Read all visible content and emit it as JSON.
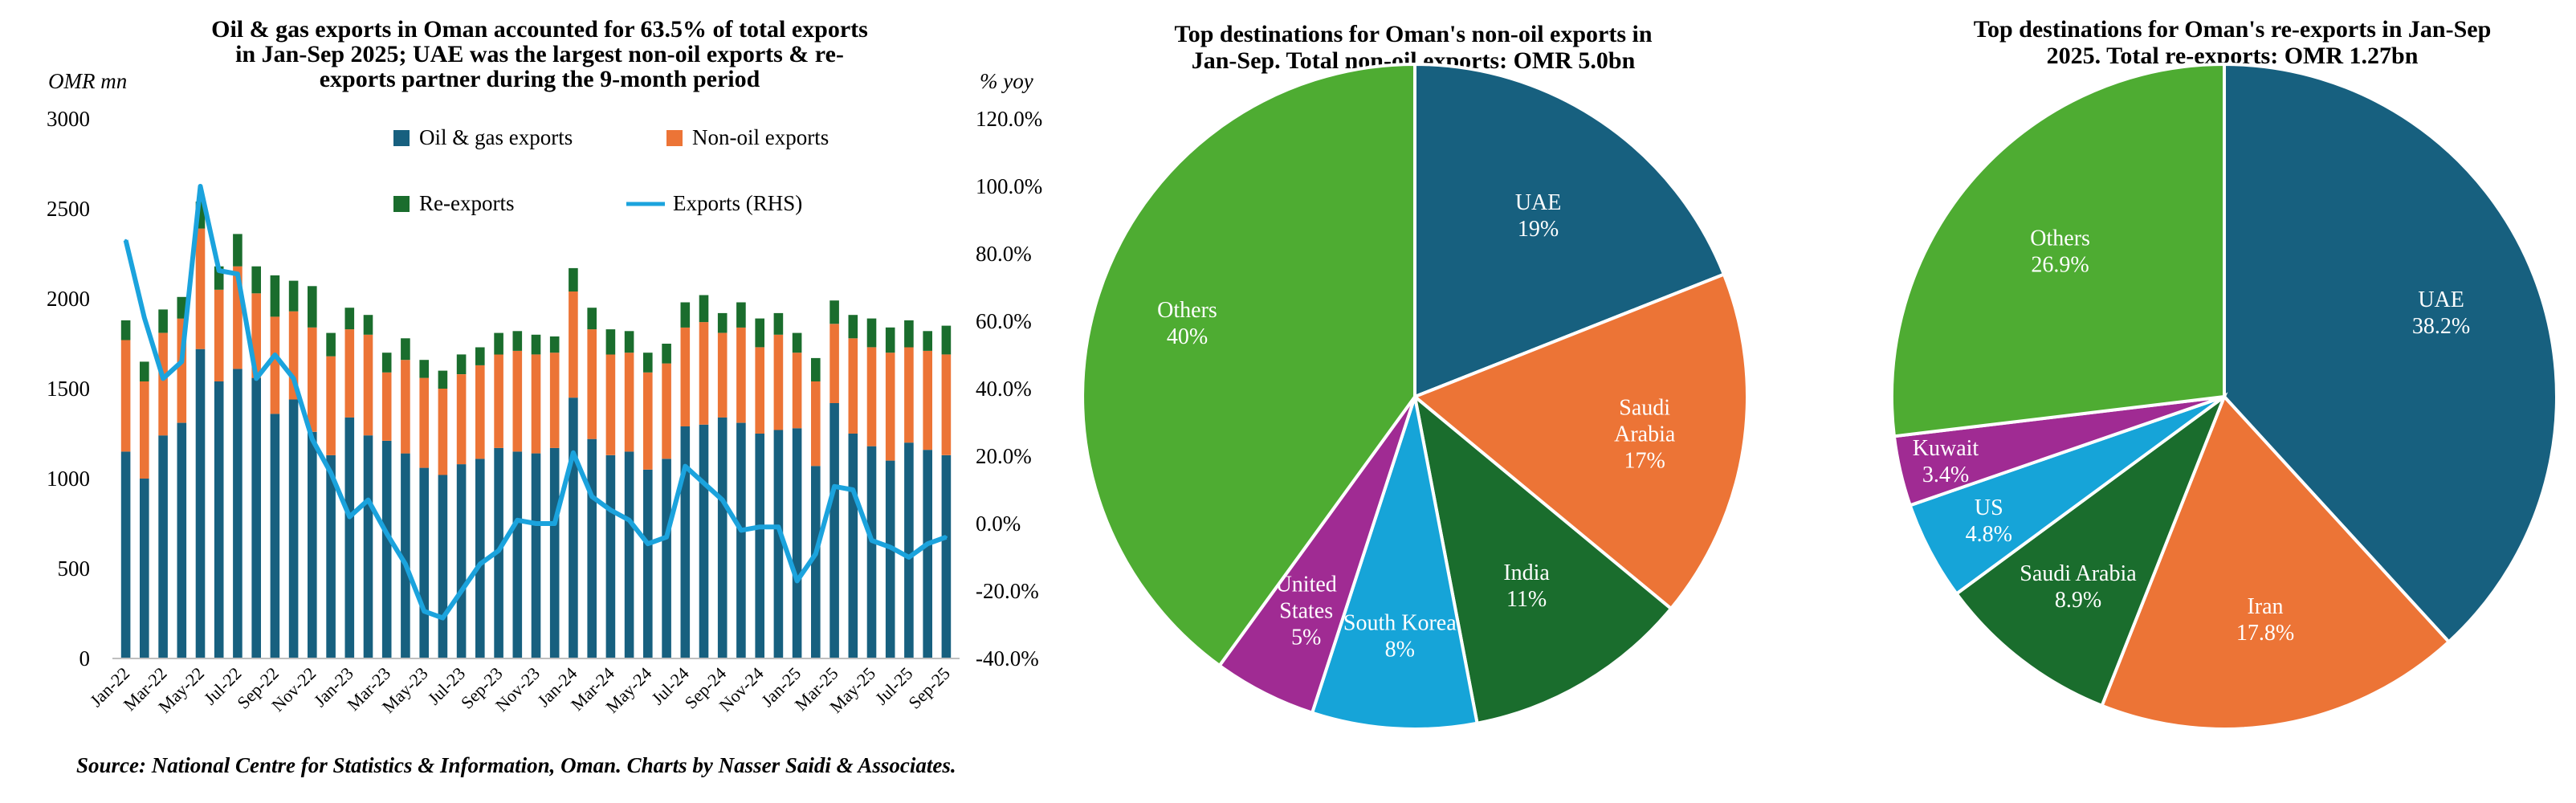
{
  "colors": {
    "oil": "#17607f",
    "nonoil": "#ec7436",
    "reexp": "#1a6d2d",
    "line": "#1ba3dd",
    "purple": "#a02b93",
    "green": "#4eac32",
    "lightblue": "#16a4d8"
  },
  "source": "Source: National Centre for Statistics & Information, Oman. Charts by Nasser Saidi & Associates.",
  "chart_data": [
    {
      "type": "bar",
      "stacked": true,
      "title_lines": [
        "Oil & gas exports in Oman accounted for 63.5% of total exports",
        "in Jan-Sep 2025; UAE was the largest non-oil exports & re-",
        "exports partner during the 9-month period"
      ],
      "ylabel": "OMR mn",
      "y2label": "% yoy",
      "ylim": [
        0,
        3000
      ],
      "y2lim": [
        -40,
        120
      ],
      "y_ticks": [
        "0",
        "500",
        "1000",
        "1500",
        "2000",
        "2500",
        "3000"
      ],
      "y2_ticks": [
        "-40.0%",
        "-20.0%",
        "0.0%",
        "20.0%",
        "40.0%",
        "60.0%",
        "80.0%",
        "100.0%",
        "120.0%"
      ],
      "x_tick_labels": [
        "Jan-22",
        "Mar-22",
        "May-22",
        "Jul-22",
        "Sep-22",
        "Nov-22",
        "Jan-23",
        "Mar-23",
        "May-23",
        "Jul-23",
        "Sep-23",
        "Nov-23",
        "Jan-24",
        "Mar-24",
        "May-24",
        "Jul-24",
        "Sep-24",
        "Nov-24",
        "Jan-25",
        "Mar-25",
        "May-25",
        "Jul-25",
        "Sep-25"
      ],
      "categories": [
        "Jan-22",
        "Feb-22",
        "Mar-22",
        "Apr-22",
        "May-22",
        "Jun-22",
        "Jul-22",
        "Aug-22",
        "Sep-22",
        "Oct-22",
        "Nov-22",
        "Dec-22",
        "Jan-23",
        "Feb-23",
        "Mar-23",
        "Apr-23",
        "May-23",
        "Jun-23",
        "Jul-23",
        "Aug-23",
        "Sep-23",
        "Oct-23",
        "Nov-23",
        "Dec-23",
        "Jan-24",
        "Feb-24",
        "Mar-24",
        "Apr-24",
        "May-24",
        "Jun-24",
        "Jul-24",
        "Aug-24",
        "Sep-24",
        "Oct-24",
        "Nov-24",
        "Dec-24",
        "Jan-25",
        "Feb-25",
        "Mar-25",
        "Apr-25",
        "May-25",
        "Jun-25",
        "Jul-25",
        "Aug-25",
        "Sep-25"
      ],
      "legend": [
        "Oil & gas exports",
        "Non-oil exports",
        "Re-exports",
        "Exports (RHS)"
      ],
      "series": [
        {
          "name": "Oil & gas exports",
          "values": [
            1150,
            1000,
            1240,
            1310,
            1720,
            1540,
            1610,
            1560,
            1360,
            1440,
            1260,
            1130,
            1340,
            1240,
            1210,
            1140,
            1060,
            1020,
            1080,
            1110,
            1170,
            1150,
            1140,
            1170,
            1450,
            1220,
            1130,
            1150,
            1050,
            1110,
            1290,
            1300,
            1340,
            1310,
            1250,
            1270,
            1280,
            1070,
            1420,
            1250,
            1180,
            1100,
            1200,
            1160,
            1130
          ]
        },
        {
          "name": "Non-oil exports",
          "values": [
            620,
            540,
            570,
            580,
            670,
            510,
            570,
            470,
            540,
            490,
            580,
            550,
            490,
            560,
            380,
            520,
            500,
            480,
            500,
            520,
            520,
            560,
            550,
            530,
            590,
            610,
            560,
            550,
            540,
            530,
            550,
            570,
            470,
            530,
            480,
            530,
            420,
            470,
            440,
            530,
            550,
            600,
            530,
            550,
            560
          ]
        },
        {
          "name": "Re-exports",
          "values": [
            110,
            110,
            130,
            120,
            150,
            130,
            180,
            150,
            230,
            170,
            230,
            130,
            120,
            110,
            110,
            120,
            100,
            100,
            110,
            100,
            120,
            110,
            110,
            90,
            130,
            120,
            140,
            120,
            110,
            110,
            140,
            150,
            110,
            140,
            160,
            120,
            110,
            130,
            130,
            130,
            160,
            140,
            150,
            110,
            160
          ]
        },
        {
          "name": "Exports (RHS)",
          "axis": "right",
          "values": [
            84,
            61,
            43,
            48,
            100,
            75,
            74,
            43,
            50,
            43,
            25,
            15,
            2,
            7,
            -3,
            -12,
            -26,
            -28,
            -20,
            -12,
            -8,
            1,
            0,
            0,
            21,
            8,
            4,
            1,
            -6,
            -4,
            17,
            12,
            7,
            -2,
            -1,
            -1,
            -17,
            -9,
            11,
            10,
            -5,
            -7,
            -10,
            -6,
            -4
          ]
        }
      ]
    },
    {
      "type": "pie",
      "title_lines": [
        "Top destinations for Oman's non-oil exports in",
        "Jan-Sep. Total non-oil exports: OMR 5.0bn"
      ],
      "slices": [
        {
          "name_lines": [
            "UAE"
          ],
          "label": "19%",
          "value": 19,
          "color": "#17607f"
        },
        {
          "name_lines": [
            "Saudi",
            "Arabia"
          ],
          "label": "17%",
          "value": 17,
          "color": "#ec7436"
        },
        {
          "name_lines": [
            "India"
          ],
          "label": "11%",
          "value": 11,
          "color": "#1a6d2d"
        },
        {
          "name_lines": [
            "South Korea"
          ],
          "label": "8%",
          "value": 8,
          "color": "#16a4d8"
        },
        {
          "name_lines": [
            "United",
            "States"
          ],
          "label": "5%",
          "value": 5,
          "color": "#a02b93"
        },
        {
          "name_lines": [
            "Others"
          ],
          "label": "40%",
          "value": 40,
          "color": "#4eac32"
        }
      ]
    },
    {
      "type": "pie",
      "title_lines": [
        "Top destinations for Oman's re-exports in Jan-Sep",
        "2025. Total re-exports: OMR 1.27bn"
      ],
      "slices": [
        {
          "name_lines": [
            "UAE"
          ],
          "label": "38.2%",
          "value": 38.2,
          "color": "#17607f"
        },
        {
          "name_lines": [
            "Iran"
          ],
          "label": "17.8%",
          "value": 17.8,
          "color": "#ec7436"
        },
        {
          "name_lines": [
            "Saudi Arabia"
          ],
          "label": "8.9%",
          "value": 8.9,
          "color": "#1a6d2d"
        },
        {
          "name_lines": [
            "US"
          ],
          "label": "4.8%",
          "value": 4.8,
          "color": "#16a4d8"
        },
        {
          "name_lines": [
            "Kuwait"
          ],
          "label": "3.4%",
          "value": 3.4,
          "color": "#a02b93"
        },
        {
          "name_lines": [
            "Others"
          ],
          "label": "26.9%",
          "value": 26.9,
          "color": "#4eac32"
        }
      ]
    }
  ]
}
